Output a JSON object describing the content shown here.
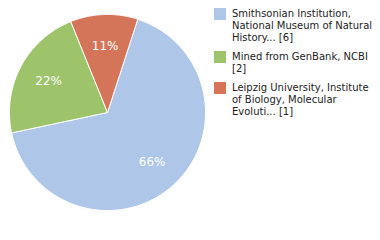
{
  "chart_data": {
    "type": "pie",
    "categories": [
      "Smithsonian Institution,\nNational Museum of Natural\nHistory... [6]",
      "Mined from GenBank, NCBI [2]",
      "Leipzig University, Institute\nof Biology, Molecular\nEvoluti... [1]"
    ],
    "values": [
      66,
      22,
      11
    ],
    "value_labels": [
      "66%",
      "22%",
      "11%"
    ],
    "colors": [
      "#aec6e8",
      "#9dc36b",
      "#d4755a"
    ],
    "data_labels": true,
    "legend": "right"
  }
}
